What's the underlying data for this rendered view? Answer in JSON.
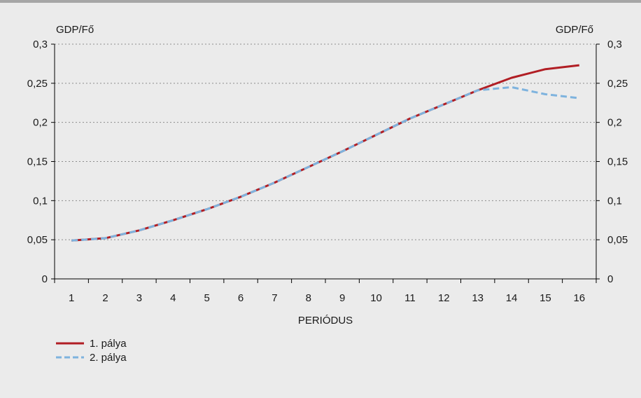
{
  "chart_data": {
    "type": "line",
    "x": [
      1,
      2,
      3,
      4,
      5,
      6,
      7,
      8,
      9,
      10,
      11,
      12,
      13,
      14,
      15,
      16
    ],
    "series": [
      {
        "name": "1. pálya",
        "color": "#b11e24",
        "dash": "solid",
        "values": [
          0.049,
          0.052,
          0.062,
          0.075,
          0.089,
          0.105,
          0.123,
          0.143,
          0.163,
          0.184,
          0.205,
          0.223,
          0.241,
          0.257,
          0.268,
          0.273
        ]
      },
      {
        "name": "2. pálya",
        "color": "#7eb3de",
        "dash": "dashed",
        "values": [
          0.049,
          0.052,
          0.062,
          0.075,
          0.089,
          0.105,
          0.123,
          0.143,
          0.163,
          0.184,
          0.205,
          0.223,
          0.241,
          0.245,
          0.236,
          0.231
        ]
      }
    ],
    "title": "",
    "xlabel": "PERIÓDUS",
    "ylabel_left": "GDP/Fő",
    "ylabel_right": "GDP/Fő",
    "ylim": [
      0,
      0.3
    ],
    "yticks": [
      0,
      0.05,
      0.1,
      0.15,
      0.2,
      0.25,
      0.3
    ],
    "ytick_labels": [
      "0",
      "0,05",
      "0,1",
      "0,15",
      "0,2",
      "0,25",
      "0,3"
    ],
    "xtick_labels": [
      "1",
      "2",
      "3",
      "4",
      "5",
      "6",
      "7",
      "8",
      "9",
      "10",
      "11",
      "12",
      "13",
      "14",
      "15",
      "16"
    ],
    "grid": "horizontal-dotted",
    "legend_position": "bottom-left"
  }
}
